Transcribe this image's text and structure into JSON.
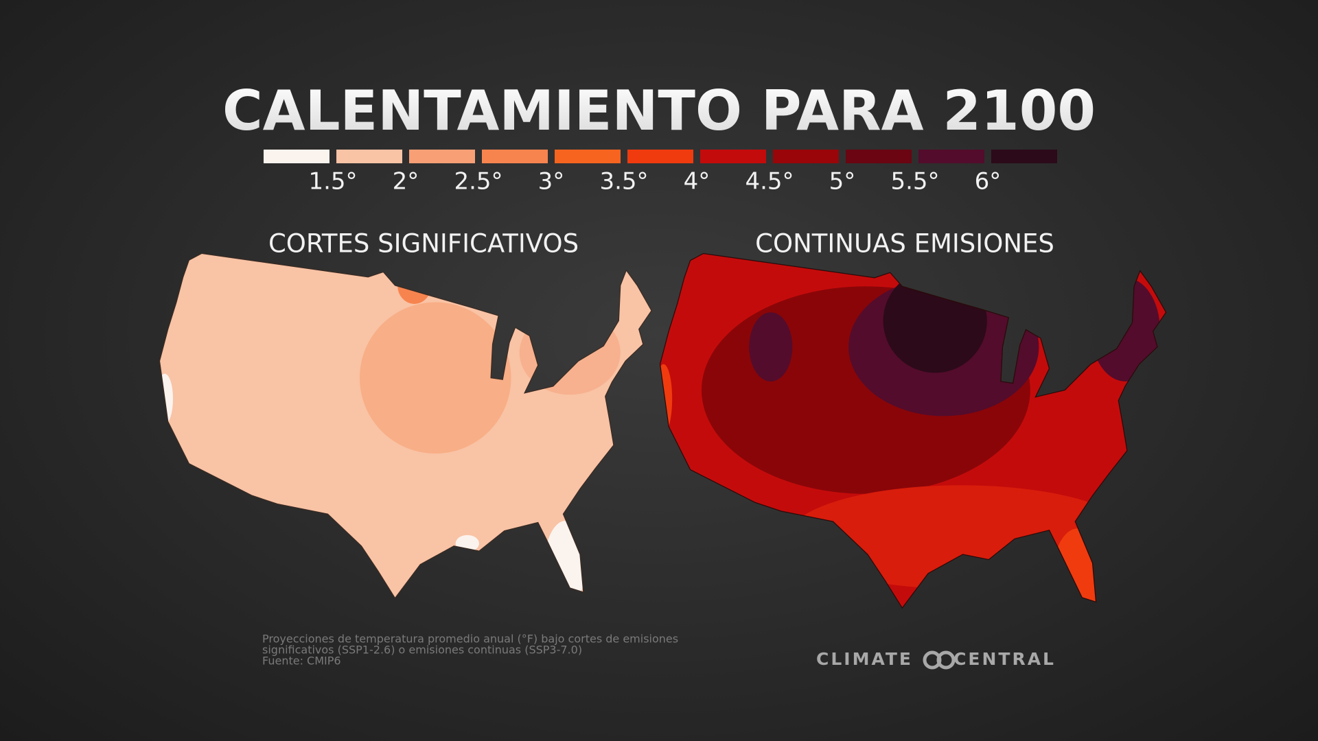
{
  "title": "CALENTAMIENTO PARA 2100",
  "legend": {
    "colors": [
      "#fbf3ee",
      "#f9c3a5",
      "#f89f76",
      "#f7844f",
      "#f6641f",
      "#f03b0f",
      "#c40b0b",
      "#990509",
      "#6a0511",
      "#530c2c",
      "#2c0a19"
    ],
    "labels": [
      "1.5°",
      "2°",
      "2.5°",
      "3°",
      "3.5°",
      "4°",
      "4.5°",
      "5°",
      "5.5°",
      "6°"
    ]
  },
  "maps": [
    {
      "title": "CORTES SIGNIFICATIVOS"
    },
    {
      "title": "CONTINUAS EMISIONES"
    }
  ],
  "footnote": [
    "Proyecciones de temperatura promedio anual (°F) bajo cortes de emisiones",
    "significativos (SSP1-2.6) o emisiones continuas (SSP3-7.0)",
    "Fuente: CMIP6"
  ],
  "brand": {
    "left": "CLIMATE",
    "right": "CENTRAL"
  }
}
